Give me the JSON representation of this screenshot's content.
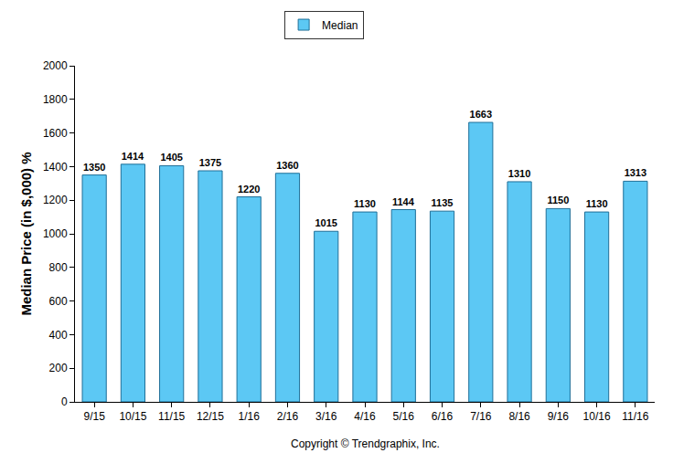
{
  "chart_data": {
    "type": "bar",
    "y_label": "Median Price (in $,000) %",
    "categories": [
      "9/15",
      "10/15",
      "11/15",
      "12/15",
      "1/16",
      "2/16",
      "3/16",
      "4/16",
      "5/16",
      "6/16",
      "7/16",
      "8/16",
      "9/16",
      "10/16",
      "11/16"
    ],
    "series": [
      {
        "name": "Median",
        "color": "#5cc8f4",
        "values": [
          1350,
          1414,
          1405,
          1375,
          1220,
          1360,
          1015,
          1130,
          1144,
          1135,
          1663,
          1310,
          1150,
          1130,
          1313
        ]
      }
    ],
    "ylim": [
      0,
      2000
    ],
    "yticks": [
      0,
      200,
      400,
      600,
      800,
      1000,
      1200,
      1400,
      1600,
      1800,
      2000
    ],
    "grid": false,
    "legend": "top",
    "data_labels": true,
    "annotations": [
      "Copyright © Trendgraphix, Inc."
    ]
  }
}
